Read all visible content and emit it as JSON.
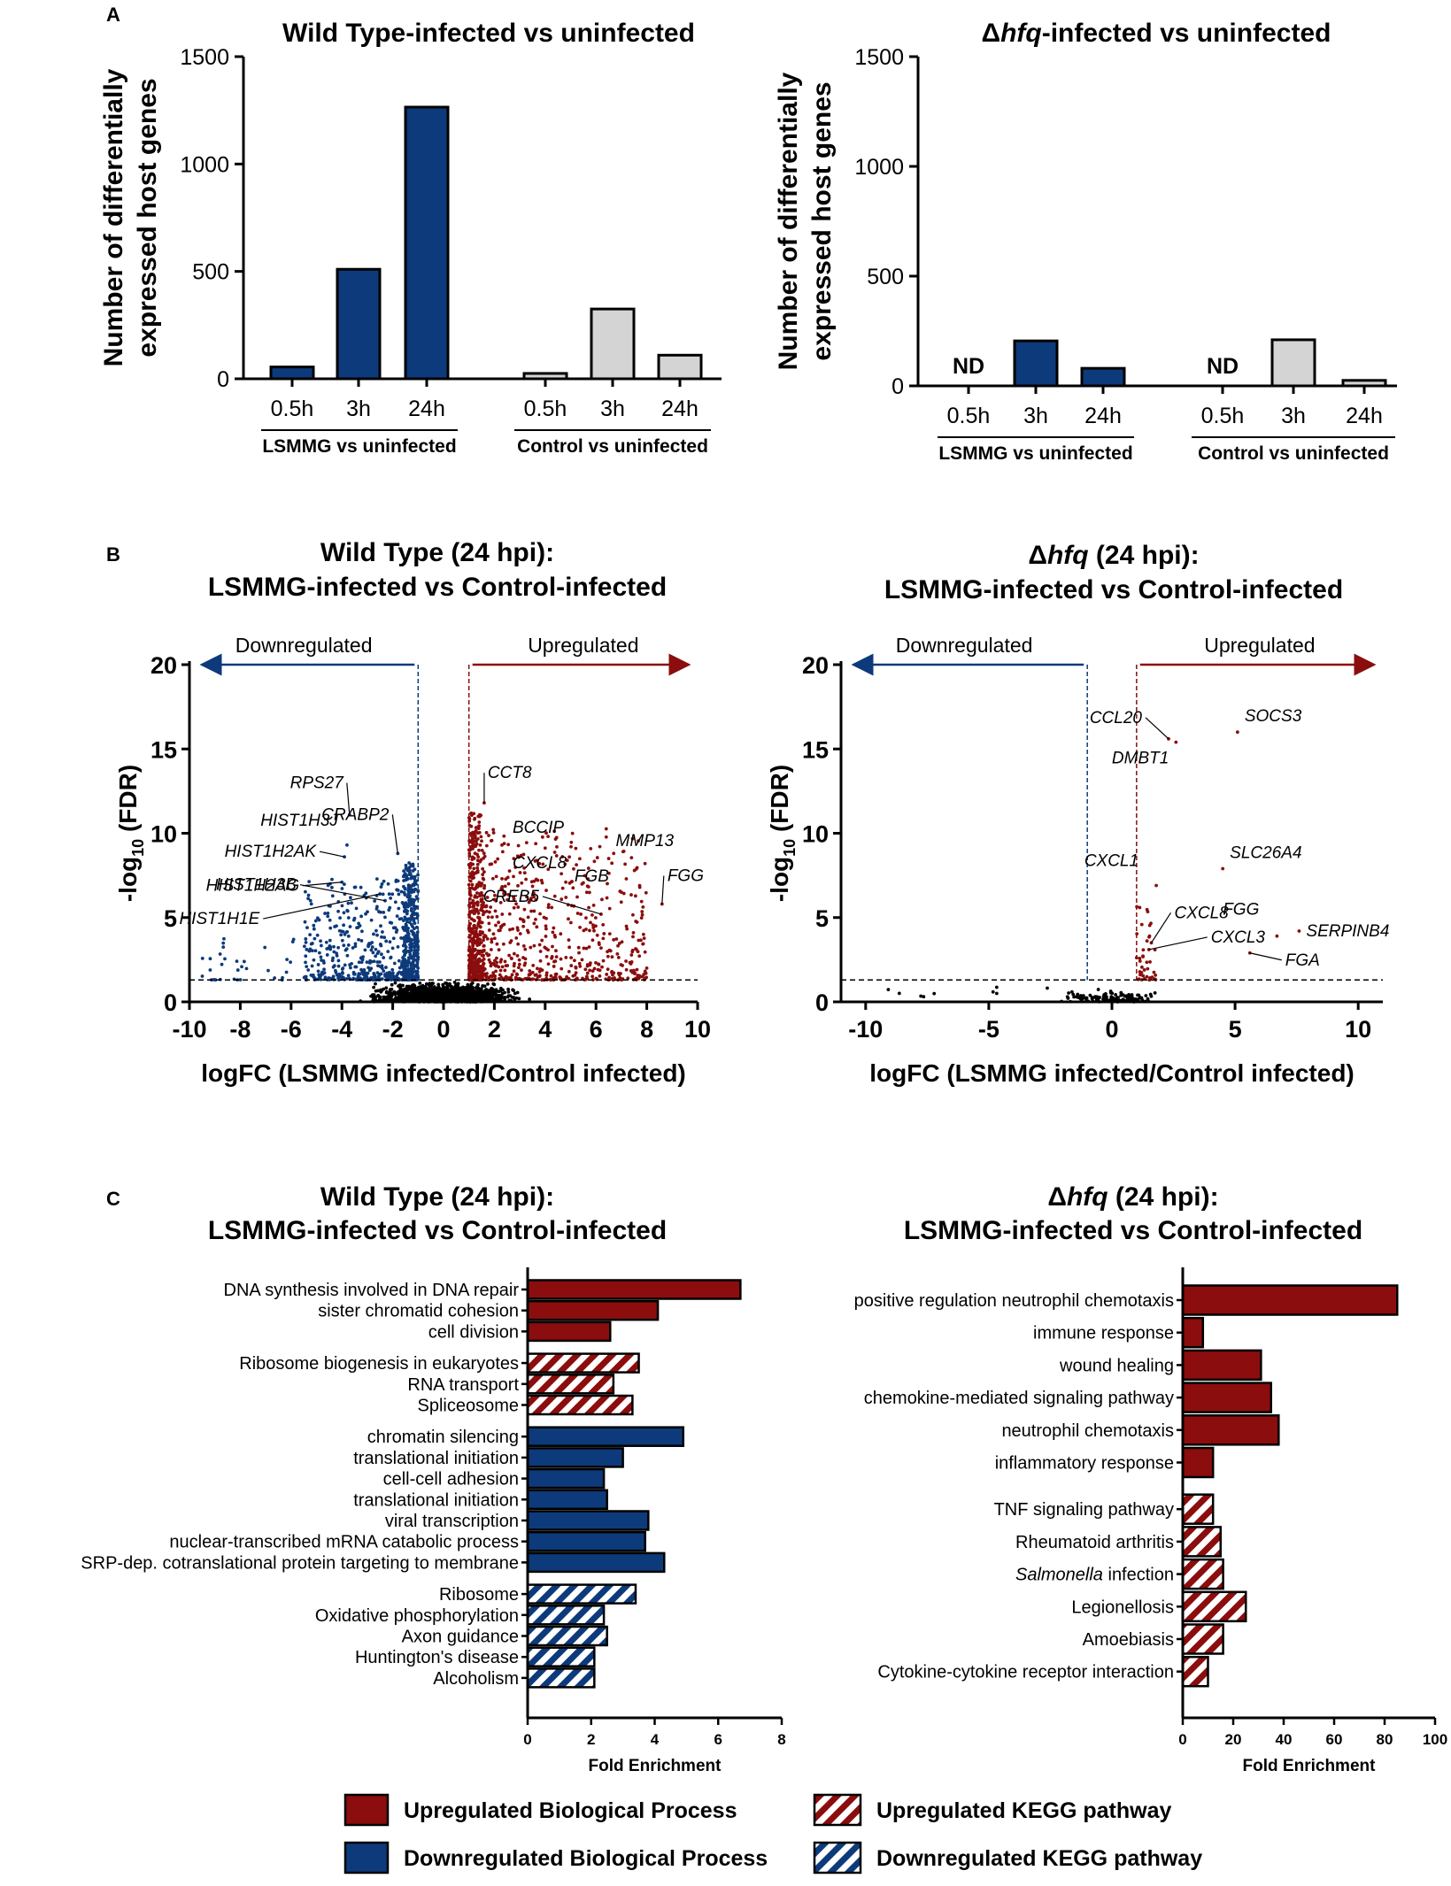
{
  "colors": {
    "up": "#8b0d0d",
    "down": "#0d3a7a",
    "control": "#d4d4d4",
    "bg": "#ffffff"
  },
  "panel_letters": [
    "A",
    "B",
    "C"
  ],
  "chart_data": [
    {
      "id": "A1",
      "type": "bar",
      "title": "Wild Type-infected vs uninfected",
      "ylabel_lines": [
        "Number of differentially",
        "expressed host genes"
      ],
      "ylim": [
        0,
        1500
      ],
      "yticks": [
        "0",
        "500",
        "1000",
        "1500"
      ],
      "groups": [
        {
          "label": "LSMMG vs uninfected",
          "categories": [
            "0.5h",
            "3h",
            "24h"
          ],
          "values": [
            55,
            510,
            1265
          ],
          "series": "LSMMG"
        },
        {
          "label": "Control vs uninfected",
          "categories": [
            "0.5h",
            "3h",
            "24h"
          ],
          "values": [
            25,
            325,
            110
          ],
          "series": "Control"
        }
      ]
    },
    {
      "id": "A2",
      "type": "bar",
      "title_prefix": "Δ",
      "title_italic": "hfq",
      "title_suffix": "-infected vs uninfected",
      "ylabel_lines": [
        "Number of differentially",
        "expressed host genes"
      ],
      "ylim": [
        0,
        1500
      ],
      "yticks": [
        "0",
        "500",
        "1000",
        "1500"
      ],
      "nd_label": "ND",
      "groups": [
        {
          "label": "LSMMG vs uninfected",
          "categories": [
            "0.5h",
            "3h",
            "24h"
          ],
          "values": [
            null,
            205,
            80
          ],
          "series": "LSMMG"
        },
        {
          "label": "Control vs uninfected",
          "categories": [
            "0.5h",
            "3h",
            "24h"
          ],
          "values": [
            null,
            210,
            25
          ],
          "series": "Control"
        }
      ]
    },
    {
      "id": "B1",
      "type": "scatter",
      "title_lines": [
        "Wild Type (24 hpi):",
        "LSMMG-infected vs Control-infected"
      ],
      "xlabel": "logFC (LSMMG infected/Control infected)",
      "ylabel": "-log10 (FDR)",
      "xlim": [
        -10,
        10
      ],
      "ylim": [
        0,
        20
      ],
      "xticks": [
        "-10",
        "-8",
        "-6",
        "-4",
        "-2",
        "0",
        "2",
        "4",
        "6",
        "8",
        "10"
      ],
      "yticks": [
        "0",
        "5",
        "10",
        "15",
        "20"
      ],
      "fc_threshold": 1,
      "fdr_threshold": 1.3,
      "down_label": "Downregulated",
      "up_label": "Upregulated",
      "genes": [
        {
          "name": "HIST1H3J",
          "x": -3.8,
          "y": 9.3
        },
        {
          "name": "RPS27",
          "x": -3.7,
          "y": 11.1
        },
        {
          "name": "HIST1H2AK",
          "x": -3.9,
          "y": 8.6
        },
        {
          "name": "CRABP2",
          "x": -1.8,
          "y": 8.8
        },
        {
          "name": "HIST1H2AG",
          "x": -4.0,
          "y": 7.1
        },
        {
          "name": "HIST1H3B",
          "x": -2.3,
          "y": 6.0
        },
        {
          "name": "HIST1H1E",
          "x": -2.5,
          "y": 6.4
        },
        {
          "name": "CCT8",
          "x": 1.6,
          "y": 11.8
        },
        {
          "name": "BCCIP",
          "x": 2.3,
          "y": 9.3
        },
        {
          "name": "CXCL8",
          "x": 2.3,
          "y": 7.3
        },
        {
          "name": "MMP13",
          "x": 6.5,
          "y": 8.5
        },
        {
          "name": "CREB5",
          "x": 6.2,
          "y": 5.2
        },
        {
          "name": "FGB",
          "x": 7.0,
          "y": 6.5
        },
        {
          "name": "FGG",
          "x": 8.6,
          "y": 5.8
        }
      ]
    },
    {
      "id": "B2",
      "type": "scatter",
      "title_prefix": "Δ",
      "title_italic": "hfq",
      "title_suffix": " (24 hpi):",
      "title_line2": "LSMMG-infected vs Control-infected",
      "xlabel": "logFC (LSMMG infected/Control infected)",
      "ylabel": "-log10 (FDR)",
      "xlim": [
        -11,
        11
      ],
      "ylim": [
        0,
        20
      ],
      "xticks": [
        "-10",
        "-5",
        "0",
        "5",
        "10"
      ],
      "yticks": [
        "0",
        "5",
        "10",
        "15",
        "20"
      ],
      "fc_threshold": 1,
      "fdr_threshold": 1.3,
      "down_label": "Downregulated",
      "up_label": "Upregulated",
      "genes": [
        {
          "name": "CCL20",
          "x": 2.3,
          "y": 15.6
        },
        {
          "name": "SOCS3",
          "x": 5.1,
          "y": 16.0
        },
        {
          "name": "DMBT1",
          "x": 2.6,
          "y": 15.4
        },
        {
          "name": "SLC26A4",
          "x": 4.5,
          "y": 7.9
        },
        {
          "name": "CXCL1",
          "x": 1.8,
          "y": 6.9
        },
        {
          "name": "CXCL8",
          "x": 1.6,
          "y": 3.5
        },
        {
          "name": "FGG",
          "x": 6.7,
          "y": 3.9
        },
        {
          "name": "SERPINB4",
          "x": 7.6,
          "y": 4.2
        },
        {
          "name": "CXCL3",
          "x": 1.5,
          "y": 3.1
        },
        {
          "name": "FGA",
          "x": 5.6,
          "y": 2.9
        }
      ]
    },
    {
      "id": "C1",
      "type": "bar",
      "orientation": "horizontal",
      "title_lines": [
        "Wild Type (24 hpi):",
        "LSMMG-infected vs Control-infected"
      ],
      "xlabel": "Fold Enrichment",
      "xlim": [
        0,
        8
      ],
      "xticks": [
        "0",
        "2",
        "4",
        "6",
        "8"
      ],
      "groups": [
        {
          "kind": "up-bp",
          "items": [
            {
              "label": "DNA synthesis involved in DNA repair",
              "value": 6.7
            },
            {
              "label": "sister chromatid cohesion",
              "value": 4.1
            },
            {
              "label": "cell division",
              "value": 2.6
            }
          ]
        },
        {
          "kind": "up-kegg",
          "items": [
            {
              "label": "Ribosome biogenesis in eukaryotes",
              "value": 3.5
            },
            {
              "label": "RNA transport",
              "value": 2.7
            },
            {
              "label": "Spliceosome",
              "value": 3.3
            }
          ]
        },
        {
          "kind": "down-bp",
          "items": [
            {
              "label": "chromatin silencing",
              "value": 4.9
            },
            {
              "label": "translational initiation",
              "value": 3.0
            },
            {
              "label": "cell-cell adhesion",
              "value": 2.4
            },
            {
              "label": "translational initiation",
              "value": 2.5
            },
            {
              "label": "viral transcription",
              "value": 3.8
            },
            {
              "label": "nuclear-transcribed mRNA catabolic process",
              "value": 3.7
            },
            {
              "label": "SRP-dep. cotranslational protein targeting to membrane",
              "value": 4.3
            }
          ]
        },
        {
          "kind": "down-kegg",
          "items": [
            {
              "label": "Ribosome",
              "value": 3.4
            },
            {
              "label": "Oxidative phosphorylation",
              "value": 2.4
            },
            {
              "label": "Axon guidance",
              "value": 2.5
            },
            {
              "label": "Huntington's disease",
              "value": 2.1
            },
            {
              "label": "Alcoholism",
              "value": 2.1
            }
          ]
        }
      ]
    },
    {
      "id": "C2",
      "type": "bar",
      "orientation": "horizontal",
      "title_prefix": "Δ",
      "title_italic": "hfq",
      "title_suffix": " (24 hpi):",
      "title_line2": "LSMMG-infected vs Control-infected",
      "xlabel": "Fold Enrichment",
      "xlim": [
        0,
        100
      ],
      "xticks": [
        "0",
        "20",
        "40",
        "60",
        "80",
        "100"
      ],
      "groups": [
        {
          "kind": "up-bp",
          "items": [
            {
              "label": "positive regulation neutrophil chemotaxis",
              "value": 85
            },
            {
              "label": "immune response",
              "value": 8
            },
            {
              "label": "wound healing",
              "value": 31
            },
            {
              "label": "chemokine-mediated signaling pathway",
              "value": 35
            },
            {
              "label": "neutrophil chemotaxis",
              "value": 38
            },
            {
              "label": "inflammatory response",
              "value": 12
            }
          ]
        },
        {
          "kind": "up-kegg",
          "items": [
            {
              "label": "TNF signaling pathway",
              "value": 12
            },
            {
              "label": "Rheumatoid arthritis",
              "value": 15
            },
            {
              "label": "Salmonella infection",
              "value": 16,
              "italic_part": "Salmonella",
              "rest": " infection"
            },
            {
              "label": "Legionellosis",
              "value": 25
            },
            {
              "label": "Amoebiasis",
              "value": 16
            },
            {
              "label": "Cytokine-cytokine receptor interaction",
              "value": 10
            }
          ]
        }
      ]
    }
  ],
  "legend": [
    {
      "kind": "up-bp",
      "label": "Upregulated Biological Process"
    },
    {
      "kind": "up-kegg",
      "label": "Upregulated KEGG pathway"
    },
    {
      "kind": "down-bp",
      "label": "Downregulated Biological Process"
    },
    {
      "kind": "down-kegg",
      "label": "Downregulated KEGG pathway"
    }
  ]
}
